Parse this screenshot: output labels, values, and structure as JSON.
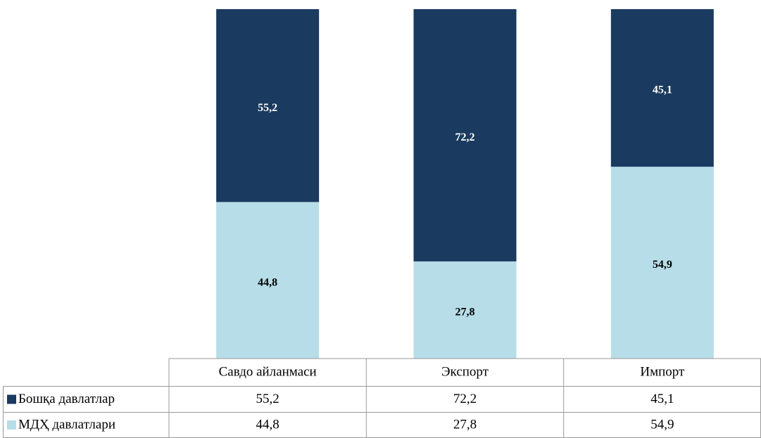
{
  "chart_data": {
    "type": "stacked_bar",
    "categories": [
      "Савдо айланмаси",
      "Экспорт",
      "Импорт"
    ],
    "series": [
      {
        "name": "Бошқа давлатлар",
        "color": "#1a3a5f",
        "values": [
          55.2,
          72.2,
          45.1
        ],
        "value_labels": [
          "55,2",
          "72,2",
          "45,1"
        ]
      },
      {
        "name": "МДҲ давлатлари",
        "color": "#b7dde8",
        "values": [
          44.8,
          27.8,
          54.9
        ],
        "value_labels": [
          "44,8",
          "27,8",
          "54,9"
        ]
      }
    ],
    "ylim": [
      0,
      100
    ],
    "data_table": true
  }
}
